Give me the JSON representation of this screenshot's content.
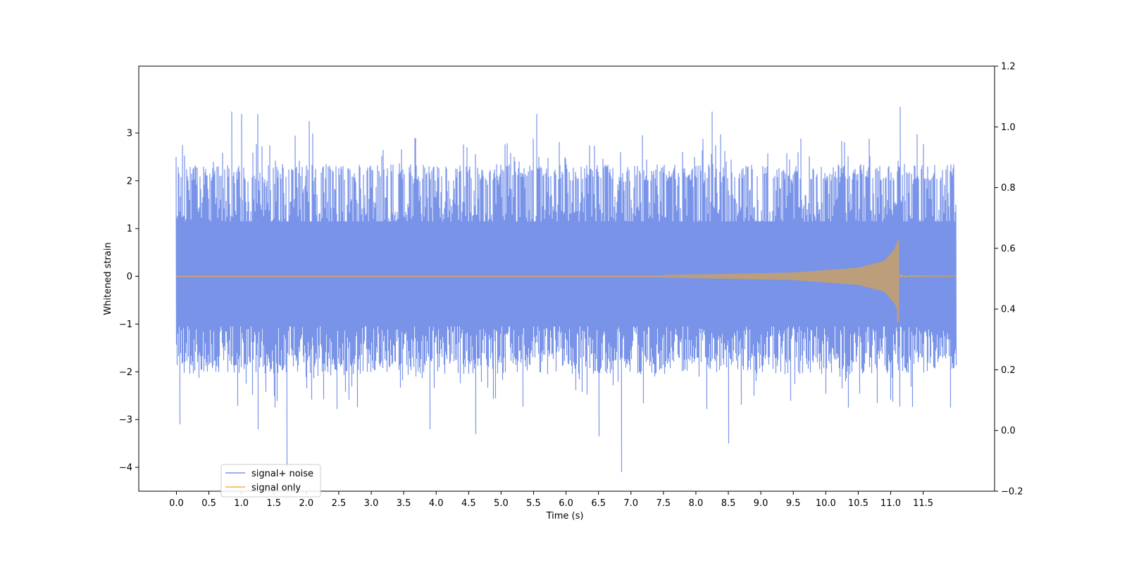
{
  "chart_data": {
    "type": "line",
    "title": "",
    "xlabel": "Time (s)",
    "ylabel": "Whitened strain",
    "xlim": [
      -0.58,
      12.6
    ],
    "ylim": [
      -4.5,
      4.4
    ],
    "y2lim": [
      -0.2,
      1.2
    ],
    "x_ticks": [
      "0.0",
      "0.5",
      "1.0",
      "1.5",
      "2.0",
      "2.5",
      "3.0",
      "3.5",
      "4.0",
      "4.5",
      "5.0",
      "5.5",
      "6.0",
      "6.5",
      "7.0",
      "7.5",
      "8.0",
      "8.5",
      "9.0",
      "9.5",
      "10.0",
      "10.5",
      "11.0",
      "11.5"
    ],
    "y_ticks": [
      "−4",
      "−3",
      "−2",
      "−1",
      "0",
      "1",
      "2",
      "3"
    ],
    "y2_ticks": [
      "−0.2",
      "0.0",
      "0.2",
      "0.4",
      "0.6",
      "0.8",
      "1.0",
      "1.2"
    ],
    "grid": false,
    "legend_position": "lower-left",
    "series": [
      {
        "name": "signal+ noise",
        "color": "#7893e8",
        "x_range": [
          0.0,
          12.0
        ],
        "typical_envelope": [
          -1.7,
          2.1
        ],
        "peaks": [
          {
            "x": 0.0,
            "y": 2.5
          },
          {
            "x": 0.85,
            "y": 3.45
          },
          {
            "x": 1.0,
            "y": 3.4
          },
          {
            "x": 1.25,
            "y": 3.4
          },
          {
            "x": 2.05,
            "y": 3.25
          },
          {
            "x": 5.55,
            "y": 3.4
          },
          {
            "x": 8.25,
            "y": 3.45
          },
          {
            "x": 11.15,
            "y": 3.55
          },
          {
            "x": 0.05,
            "y": -3.1
          },
          {
            "x": 1.25,
            "y": -3.2
          },
          {
            "x": 1.7,
            "y": -4.0
          },
          {
            "x": 3.9,
            "y": -3.2
          },
          {
            "x": 4.6,
            "y": -3.3
          },
          {
            "x": 6.5,
            "y": -3.35
          },
          {
            "x": 6.85,
            "y": -4.1
          },
          {
            "x": 8.5,
            "y": -3.5
          }
        ]
      },
      {
        "name": "signal only",
        "color": "#f5b041",
        "x_range": [
          0.0,
          12.0
        ],
        "merger_time": 11.13,
        "baseline": 0.0,
        "envelope": [
          {
            "x": 7.5,
            "y": 0.03
          },
          {
            "x": 8.5,
            "y": 0.05
          },
          {
            "x": 9.5,
            "y": 0.08
          },
          {
            "x": 10.5,
            "y": 0.18
          },
          {
            "x": 10.9,
            "y": 0.32
          },
          {
            "x": 11.05,
            "y": 0.55
          },
          {
            "x": 11.13,
            "y": 0.8
          }
        ],
        "merger_min": -0.95
      }
    ]
  }
}
